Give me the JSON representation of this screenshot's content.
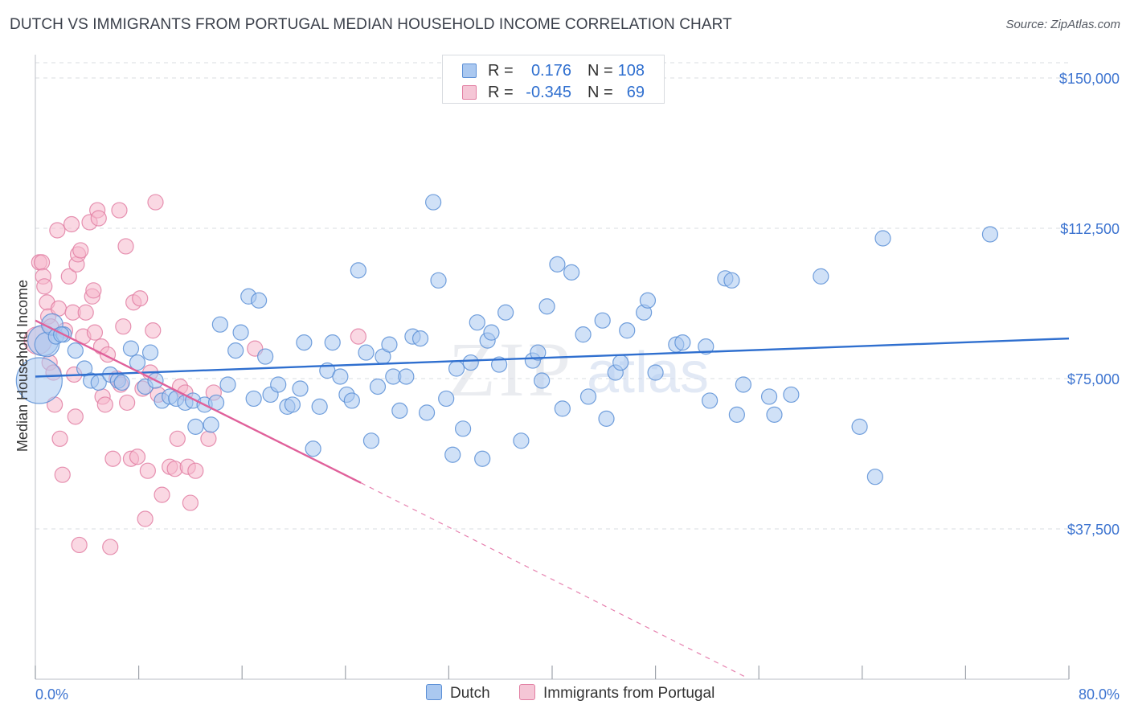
{
  "header": {
    "title": "DUTCH VS IMMIGRANTS FROM PORTUGAL MEDIAN HOUSEHOLD INCOME CORRELATION CHART",
    "source": "Source: ZipAtlas.com"
  },
  "colors": {
    "dutch_fill": "#aac8f0",
    "dutch_stroke": "#5b8fd6",
    "dutch_line": "#2f6fcf",
    "portugal_fill": "#f5b8cc",
    "portugal_stroke": "#e27fa3",
    "portugal_line": "#e0609a",
    "axis_label": "#3d74d0",
    "grid": "#dadde2"
  },
  "watermark": {
    "zip": "ZIP",
    "atlas": "atlas"
  },
  "legend": {
    "rows": [
      {
        "r_label": "R =",
        "r_value": "0.176",
        "n_label": "N =",
        "n_value": "108"
      },
      {
        "r_label": "R =",
        "r_value": "-0.345",
        "n_label": "N =",
        "n_value": "69"
      }
    ]
  },
  "bottom_legend": {
    "dutch": "Dutch",
    "portugal": "Immigrants from Portugal"
  },
  "chart_data": {
    "type": "scatter",
    "title": "DUTCH VS IMMIGRANTS FROM PORTUGAL MEDIAN HOUSEHOLD INCOME CORRELATION CHART",
    "xlabel": "",
    "ylabel": "Median Household Income",
    "xlim": [
      0,
      80
    ],
    "ylim": [
      0,
      150000
    ],
    "x_tick_labels": [
      "0.0%",
      "80.0%"
    ],
    "y_ticks": [
      37500,
      75000,
      112500,
      150000
    ],
    "y_tick_labels": [
      "$37,500",
      "$75,000",
      "$112,500",
      "$150,000"
    ],
    "grid": true,
    "legend_position": "top-center",
    "series": [
      {
        "name": "Dutch",
        "r": 0.176,
        "n": 108,
        "trend": {
          "x": [
            0,
            80
          ],
          "y": [
            75500,
            85000
          ]
        },
        "points": [
          [
            0.3,
            74500,
            3.0
          ],
          [
            0.6,
            84500,
            2.0
          ],
          [
            0.9,
            83500,
            1.6
          ],
          [
            1.3,
            88500,
            1.4
          ],
          [
            1.6,
            85500,
            1.0
          ],
          [
            2.2,
            86000,
            1.0
          ],
          [
            3.1,
            82000,
            1.0
          ],
          [
            3.8,
            77500,
            1.0
          ],
          [
            4.3,
            74500,
            1.0
          ],
          [
            4.9,
            74000,
            1.0
          ],
          [
            5.8,
            76000,
            1.0
          ],
          [
            6.4,
            74500,
            1.0
          ],
          [
            6.7,
            74000,
            1.0
          ],
          [
            7.4,
            82500,
            1.0
          ],
          [
            7.9,
            79000,
            1.0
          ],
          [
            8.5,
            73000,
            1.0
          ],
          [
            8.9,
            81500,
            1.0
          ],
          [
            9.3,
            74500,
            1.0
          ],
          [
            9.8,
            69500,
            1.0
          ],
          [
            10.4,
            70500,
            1.0
          ],
          [
            10.9,
            70000,
            1.0
          ],
          [
            11.6,
            69000,
            1.0
          ],
          [
            12.2,
            69500,
            1.0
          ],
          [
            12.4,
            63000,
            1.0
          ],
          [
            13.1,
            68500,
            1.0
          ],
          [
            13.6,
            63500,
            1.0
          ],
          [
            14.0,
            69000,
            1.0
          ],
          [
            14.3,
            88500,
            1.0
          ],
          [
            14.9,
            73500,
            1.0
          ],
          [
            15.5,
            82000,
            1.0
          ],
          [
            15.9,
            86500,
            1.0
          ],
          [
            16.5,
            95500,
            1.0
          ],
          [
            16.9,
            70000,
            1.0
          ],
          [
            17.3,
            94500,
            1.0
          ],
          [
            17.8,
            80500,
            1.0
          ],
          [
            18.2,
            71000,
            1.0
          ],
          [
            18.8,
            73500,
            1.0
          ],
          [
            19.5,
            68000,
            1.0
          ],
          [
            19.9,
            68500,
            1.0
          ],
          [
            20.5,
            72500,
            1.0
          ],
          [
            20.8,
            84000,
            1.0
          ],
          [
            21.5,
            57500,
            1.0
          ],
          [
            22.0,
            68000,
            1.0
          ],
          [
            22.6,
            77000,
            1.0
          ],
          [
            23.0,
            84000,
            1.0
          ],
          [
            23.6,
            75500,
            1.0
          ],
          [
            24.1,
            71000,
            1.0
          ],
          [
            24.5,
            69500,
            1.0
          ],
          [
            25.0,
            102000,
            1.0
          ],
          [
            25.6,
            81500,
            1.0
          ],
          [
            26.0,
            59500,
            1.0
          ],
          [
            26.5,
            73000,
            1.0
          ],
          [
            26.9,
            80500,
            1.0
          ],
          [
            27.4,
            83500,
            1.0
          ],
          [
            27.7,
            75500,
            1.0
          ],
          [
            28.2,
            67000,
            1.0
          ],
          [
            28.7,
            75500,
            1.0
          ],
          [
            29.2,
            85500,
            1.0
          ],
          [
            29.8,
            85000,
            1.0
          ],
          [
            30.3,
            66500,
            1.0
          ],
          [
            30.8,
            119000,
            1.0
          ],
          [
            31.2,
            99500,
            1.0
          ],
          [
            31.8,
            70000,
            1.0
          ],
          [
            32.3,
            56000,
            1.0
          ],
          [
            32.6,
            77500,
            1.0
          ],
          [
            33.1,
            62500,
            1.0
          ],
          [
            33.7,
            79000,
            1.0
          ],
          [
            34.2,
            89000,
            1.0
          ],
          [
            34.6,
            55000,
            1.0
          ],
          [
            35.0,
            84500,
            1.0
          ],
          [
            35.3,
            86500,
            1.0
          ],
          [
            35.9,
            78500,
            1.0
          ],
          [
            36.4,
            91500,
            1.0
          ],
          [
            37.6,
            59500,
            1.0
          ],
          [
            38.5,
            79500,
            1.0
          ],
          [
            38.9,
            81500,
            1.0
          ],
          [
            39.2,
            74500,
            1.0
          ],
          [
            39.6,
            93000,
            1.0
          ],
          [
            40.4,
            103500,
            1.0
          ],
          [
            40.8,
            67500,
            1.0
          ],
          [
            41.5,
            101500,
            1.0
          ],
          [
            42.4,
            86000,
            1.0
          ],
          [
            42.8,
            70500,
            1.0
          ],
          [
            43.9,
            89500,
            1.0
          ],
          [
            44.2,
            65000,
            1.0
          ],
          [
            44.9,
            76500,
            1.0
          ],
          [
            45.3,
            79000,
            1.0
          ],
          [
            45.8,
            87000,
            1.0
          ],
          [
            47.1,
            91500,
            1.0
          ],
          [
            47.4,
            94500,
            1.0
          ],
          [
            48.0,
            76500,
            1.0
          ],
          [
            49.6,
            83500,
            1.0
          ],
          [
            50.1,
            84000,
            1.0
          ],
          [
            51.9,
            83000,
            1.0
          ],
          [
            52.2,
            69500,
            1.0
          ],
          [
            53.4,
            100000,
            1.0
          ],
          [
            53.9,
            99500,
            1.0
          ],
          [
            54.3,
            66000,
            1.0
          ],
          [
            54.8,
            73500,
            1.0
          ],
          [
            56.8,
            70500,
            1.0
          ],
          [
            57.2,
            66000,
            1.0
          ],
          [
            58.5,
            71000,
            1.0
          ],
          [
            60.8,
            100500,
            1.0
          ],
          [
            63.8,
            63000,
            1.0
          ],
          [
            65.0,
            50500,
            1.0
          ],
          [
            65.6,
            110000,
            1.0
          ],
          [
            73.9,
            111000,
            1.0
          ],
          [
            2.0,
            86000,
            1.0
          ]
        ]
      },
      {
        "name": "Immigrants from Portugal",
        "r": -0.345,
        "n": 69,
        "trend": {
          "x": [
            0,
            25.2
          ],
          "y": [
            89500,
            49000
          ]
        },
        "trend_dashed": {
          "x": [
            25.2,
            55.0
          ],
          "y": [
            49000,
            500
          ]
        },
        "points": [
          [
            0.2,
            84500,
            1.8
          ],
          [
            0.3,
            104000,
            1.0
          ],
          [
            0.5,
            104000,
            1.0
          ],
          [
            0.6,
            100500,
            1.0
          ],
          [
            0.7,
            98000,
            1.0
          ],
          [
            0.9,
            94000,
            1.0
          ],
          [
            1.0,
            90500,
            1.0
          ],
          [
            1.1,
            79000,
            1.0
          ],
          [
            1.2,
            88000,
            1.0
          ],
          [
            1.4,
            76500,
            1.0
          ],
          [
            1.5,
            68500,
            1.0
          ],
          [
            1.7,
            112000,
            1.0
          ],
          [
            1.8,
            92500,
            1.0
          ],
          [
            1.9,
            60000,
            1.0
          ],
          [
            2.1,
            51000,
            1.0
          ],
          [
            2.3,
            87000,
            1.0
          ],
          [
            2.6,
            100500,
            1.0
          ],
          [
            2.8,
            113500,
            1.0
          ],
          [
            2.9,
            91500,
            1.0
          ],
          [
            3.0,
            76000,
            1.0
          ],
          [
            3.1,
            65500,
            1.0
          ],
          [
            3.2,
            103500,
            1.0
          ],
          [
            3.3,
            106000,
            1.0
          ],
          [
            3.4,
            33500,
            1.0
          ],
          [
            3.5,
            107000,
            1.0
          ],
          [
            3.7,
            85500,
            1.0
          ],
          [
            3.9,
            91500,
            1.0
          ],
          [
            4.2,
            114000,
            1.0
          ],
          [
            4.4,
            95500,
            1.0
          ],
          [
            4.5,
            97000,
            1.0
          ],
          [
            4.6,
            86500,
            1.0
          ],
          [
            4.8,
            117000,
            1.0
          ],
          [
            4.9,
            115000,
            1.0
          ],
          [
            5.1,
            83000,
            1.0
          ],
          [
            5.2,
            70500,
            1.0
          ],
          [
            5.4,
            68500,
            1.0
          ],
          [
            5.6,
            81000,
            1.0
          ],
          [
            5.8,
            33000,
            1.0
          ],
          [
            6.0,
            55000,
            1.0
          ],
          [
            6.3,
            75000,
            1.0
          ],
          [
            6.5,
            117000,
            1.0
          ],
          [
            6.6,
            73500,
            1.0
          ],
          [
            6.8,
            88000,
            1.0
          ],
          [
            7.0,
            108000,
            1.0
          ],
          [
            7.1,
            69000,
            1.0
          ],
          [
            7.4,
            55000,
            1.0
          ],
          [
            7.6,
            94000,
            1.0
          ],
          [
            7.9,
            55500,
            1.0
          ],
          [
            8.1,
            95000,
            1.0
          ],
          [
            8.3,
            72500,
            1.0
          ],
          [
            8.5,
            40000,
            1.0
          ],
          [
            8.7,
            52000,
            1.0
          ],
          [
            8.9,
            76500,
            1.0
          ],
          [
            9.1,
            87000,
            1.0
          ],
          [
            9.3,
            119000,
            1.0
          ],
          [
            9.5,
            71000,
            1.0
          ],
          [
            9.8,
            46000,
            1.0
          ],
          [
            10.4,
            53000,
            1.0
          ],
          [
            10.8,
            52500,
            1.0
          ],
          [
            11.0,
            60000,
            1.0
          ],
          [
            11.2,
            73000,
            1.0
          ],
          [
            11.6,
            71500,
            1.0
          ],
          [
            11.8,
            53000,
            1.0
          ],
          [
            12.0,
            44000,
            1.0
          ],
          [
            12.4,
            52000,
            1.0
          ],
          [
            13.4,
            60000,
            1.0
          ],
          [
            13.8,
            71500,
            1.0
          ],
          [
            17.0,
            82500,
            1.0
          ],
          [
            25.0,
            85500,
            1.0
          ]
        ]
      }
    ]
  }
}
